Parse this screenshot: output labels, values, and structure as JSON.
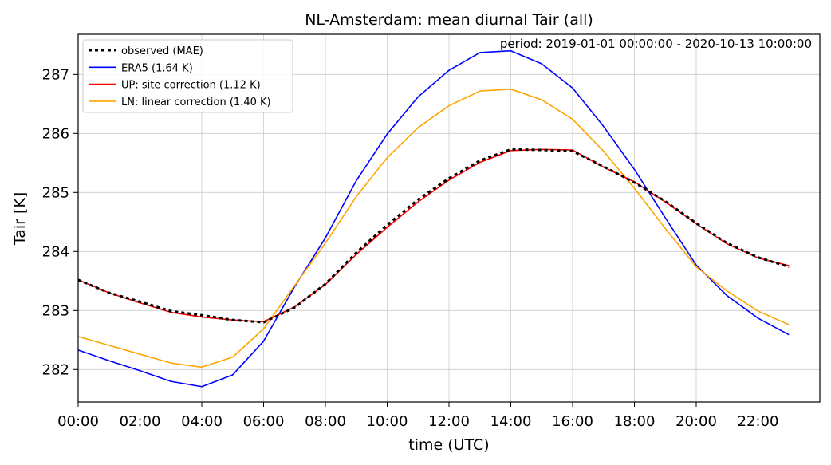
{
  "chart_data": {
    "type": "line",
    "title": "NL-Amsterdam: mean diurnal Tair (all)",
    "annotation": "period: 2019-01-01 00:00:00 - 2020-10-13 10:00:00",
    "xlabel": "time (UTC)",
    "ylabel": "Tair [K]",
    "x": [
      0,
      1,
      2,
      3,
      4,
      5,
      6,
      7,
      8,
      9,
      10,
      11,
      12,
      13,
      14,
      15,
      16,
      17,
      18,
      19,
      20,
      21,
      22,
      23
    ],
    "xlim": [
      0,
      24
    ],
    "ylim": [
      281.45,
      287.68
    ],
    "xticks": [
      {
        "value": 0,
        "label": "00:00"
      },
      {
        "value": 2,
        "label": "02:00"
      },
      {
        "value": 4,
        "label": "04:00"
      },
      {
        "value": 6,
        "label": "06:00"
      },
      {
        "value": 8,
        "label": "08:00"
      },
      {
        "value": 10,
        "label": "10:00"
      },
      {
        "value": 12,
        "label": "12:00"
      },
      {
        "value": 14,
        "label": "14:00"
      },
      {
        "value": 16,
        "label": "16:00"
      },
      {
        "value": 18,
        "label": "18:00"
      },
      {
        "value": 20,
        "label": "20:00"
      },
      {
        "value": 22,
        "label": "22:00"
      }
    ],
    "yticks": [
      {
        "value": 282,
        "label": "282"
      },
      {
        "value": 283,
        "label": "283"
      },
      {
        "value": 284,
        "label": "284"
      },
      {
        "value": 285,
        "label": "285"
      },
      {
        "value": 286,
        "label": "286"
      },
      {
        "value": 287,
        "label": "287"
      }
    ],
    "grid": true,
    "legend_position": "top-left",
    "series": [
      {
        "name": "observed (MAE)",
        "color": "#000000",
        "style": "dotted",
        "values": [
          283.52,
          283.3,
          283.15,
          282.99,
          282.92,
          282.84,
          282.8,
          283.05,
          283.45,
          283.98,
          284.45,
          284.88,
          285.24,
          285.54,
          285.73,
          285.72,
          285.7,
          285.44,
          285.17,
          284.85,
          284.48,
          284.14,
          283.9,
          283.74
        ]
      },
      {
        "name": "ERA5 (1.64 K)",
        "color": "#0000ff",
        "style": "solid",
        "values": [
          282.33,
          282.15,
          281.98,
          281.8,
          281.71,
          281.91,
          282.48,
          283.4,
          284.23,
          285.2,
          285.99,
          286.62,
          287.07,
          287.37,
          287.4,
          287.18,
          286.77,
          286.12,
          285.39,
          284.57,
          283.77,
          283.25,
          282.87,
          282.59
        ]
      },
      {
        "name": "UP: site correction (1.12 K)",
        "color": "#ff0000",
        "style": "solid",
        "values": [
          283.52,
          283.3,
          283.13,
          282.97,
          282.89,
          282.84,
          282.81,
          283.06,
          283.44,
          283.95,
          284.41,
          284.84,
          285.21,
          285.51,
          285.71,
          285.73,
          285.72,
          285.43,
          285.18,
          284.84,
          284.47,
          284.13,
          283.89,
          283.76
        ]
      },
      {
        "name": "LN: linear correction (1.40 K)",
        "color": "#ffa500",
        "style": "solid",
        "values": [
          282.56,
          282.41,
          282.26,
          282.11,
          282.04,
          282.21,
          282.69,
          283.42,
          284.14,
          284.93,
          285.59,
          286.1,
          286.47,
          286.72,
          286.75,
          286.57,
          286.24,
          285.7,
          285.07,
          284.39,
          283.74,
          283.33,
          282.99,
          282.76
        ]
      }
    ]
  }
}
